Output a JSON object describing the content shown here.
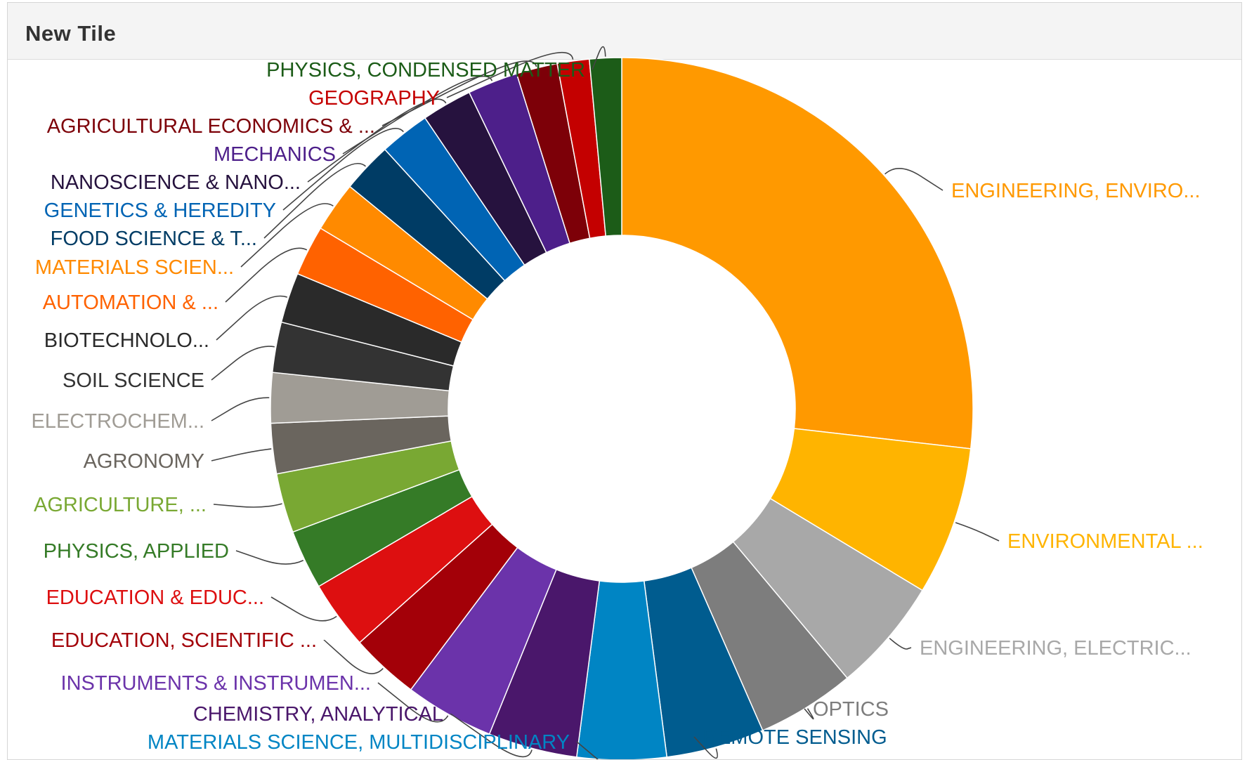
{
  "tile": {
    "title": "New Tile"
  },
  "chart_data": {
    "type": "pie",
    "donut": true,
    "title": "",
    "slices": [
      {
        "label": "ENGINEERING, ENVIRO...",
        "value": 25.5,
        "color": "#ff9900"
      },
      {
        "label": "ENVIRONMENTAL ...",
        "value": 6.5,
        "color": "#ffb400"
      },
      {
        "label": "ENGINEERING, ELECTRIC...",
        "value": 5.0,
        "color": "#a8a8a8"
      },
      {
        "label": "OPTICS",
        "value": 4.3,
        "color": "#7d7d7d"
      },
      {
        "label": "REMOTE SENSING",
        "value": 4.3,
        "color": "#005c8f"
      },
      {
        "label": "MATERIALS SCIENCE, MULTIDISCIPLINARY",
        "value": 3.9,
        "color": "#0085c4"
      },
      {
        "label": "CHEMISTRY, ANALYTICAL",
        "value": 3.9,
        "color": "#4a176b"
      },
      {
        "label": "INSTRUMENTS & INSTRUMEN...",
        "value": 3.9,
        "color": "#6b33aa"
      },
      {
        "label": "EDUCATION, SCIENTIFIC ...",
        "value": 3.0,
        "color": "#a30008"
      },
      {
        "label": "EDUCATION & EDUC...",
        "value": 3.0,
        "color": "#dd0f10"
      },
      {
        "label": "PHYSICS, APPLIED",
        "value": 2.6,
        "color": "#357b27"
      },
      {
        "label": "AGRICULTURE, ...",
        "value": 2.6,
        "color": "#79a833"
      },
      {
        "label": "AGRONOMY",
        "value": 2.2,
        "color": "#6a655e"
      },
      {
        "label": "ELECTROCHEM...",
        "value": 2.2,
        "color": "#a09c95"
      },
      {
        "label": "SOIL SCIENCE",
        "value": 2.2,
        "color": "#333333"
      },
      {
        "label": "BIOTECHNOLO...",
        "value": 2.2,
        "color": "#2a2a2a"
      },
      {
        "label": "AUTOMATION & ...",
        "value": 2.2,
        "color": "#ff6200"
      },
      {
        "label": "MATERIALS SCIEN...",
        "value": 2.2,
        "color": "#ff8a00"
      },
      {
        "label": "FOOD SCIENCE & T...",
        "value": 2.2,
        "color": "#003c65"
      },
      {
        "label": "GENETICS & HEREDITY",
        "value": 2.2,
        "color": "#0064b4"
      },
      {
        "label": "NANOSCIENCE & NANO...",
        "value": 2.2,
        "color": "#26123e"
      },
      {
        "label": "MECHANICS",
        "value": 2.2,
        "color": "#4d1f8a"
      },
      {
        "label": "AGRICULTURAL ECONOMICS & ...",
        "value": 1.8,
        "color": "#7d0008"
      },
      {
        "label": "GEOGRAPHY",
        "value": 1.4,
        "color": "#c40000"
      },
      {
        "label": "PHYSICS, CONDENSED MATTER",
        "value": 1.4,
        "color": "#1c5c18"
      }
    ],
    "label_colors": {
      "ENGINEERING, ENVIRO...": "#ff9900",
      "ENVIRONMENTAL ...": "#ffb400",
      "ENGINEERING, ELECTRIC...": "#a8a8a8",
      "OPTICS": "#7d7d7d",
      "REMOTE SENSING": "#005c8f",
      "MATERIALS SCIENCE, MULTIDISCIPLINARY": "#0085c4",
      "CHEMISTRY, ANALYTICAL": "#4a176b",
      "INSTRUMENTS & INSTRUMEN...": "#6b33aa",
      "EDUCATION, SCIENTIFIC ...": "#a30008",
      "EDUCATION & EDUC...": "#dd0f10",
      "PHYSICS, APPLIED": "#357b27",
      "AGRICULTURE, ...": "#79a833",
      "AGRONOMY": "#6a655e",
      "ELECTROCHEM...": "#a09c95",
      "SOIL SCIENCE": "#333333",
      "BIOTECHNOLO...": "#2a2a2a",
      "AUTOMATION & ...": "#ff6200",
      "MATERIALS SCIEN...": "#ff8a00",
      "FOOD SCIENCE & T...": "#003c65",
      "GENETICS & HEREDITY": "#0064b4",
      "NANOSCIENCE & NANO...": "#26123e",
      "MECHANICS": "#4d1f8a",
      "AGRICULTURAL ECONOMICS & ...": "#7d0008",
      "GEOGRAPHY": "#c40000",
      "PHYSICS, CONDENSED MATTER": "#1c5c18"
    },
    "legend": "none"
  }
}
